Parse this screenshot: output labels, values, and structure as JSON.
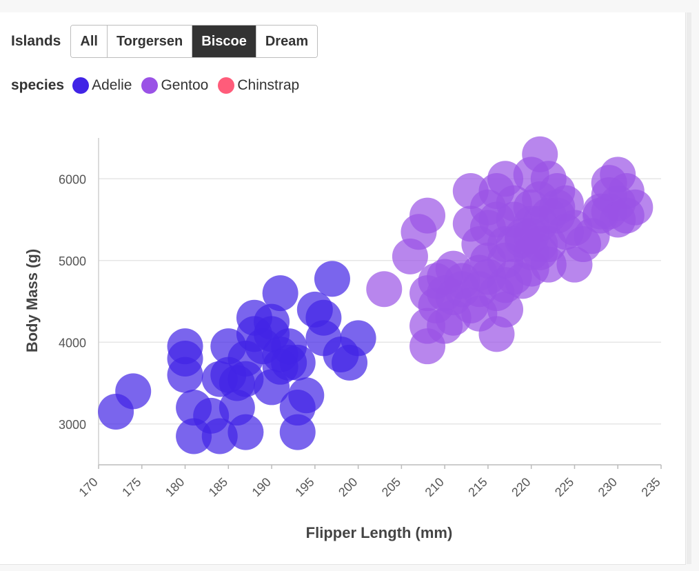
{
  "filters": {
    "label": "Islands",
    "options": [
      "All",
      "Torgersen",
      "Biscoe",
      "Dream"
    ],
    "selected": "Biscoe"
  },
  "legend": {
    "title": "species",
    "items": [
      {
        "label": "Adelie",
        "color": "#4124e6"
      },
      {
        "label": "Gentoo",
        "color": "#9a52e6"
      },
      {
        "label": "Chinstrap",
        "color": "#ff5c7a"
      }
    ]
  },
  "chart_data": {
    "type": "scatter",
    "xlabel": "Flipper Length (mm)",
    "ylabel": "Body Mass (g)",
    "xlim": [
      170,
      235
    ],
    "ylim": [
      2500,
      6500
    ],
    "x_ticks": [
      170,
      175,
      180,
      185,
      190,
      195,
      200,
      205,
      210,
      215,
      220,
      225,
      230,
      235
    ],
    "y_ticks": [
      3000,
      4000,
      5000,
      6000
    ],
    "grid": "horizontal",
    "series": [
      {
        "name": "Adelie",
        "color": "#4124e6",
        "points": [
          [
            172,
            3150
          ],
          [
            174,
            3400
          ],
          [
            180,
            3950
          ],
          [
            180,
            3800
          ],
          [
            180,
            3600
          ],
          [
            181,
            3200
          ],
          [
            181,
            2850
          ],
          [
            183,
            3100
          ],
          [
            184,
            2850
          ],
          [
            184,
            3550
          ],
          [
            185,
            3950
          ],
          [
            185,
            3600
          ],
          [
            186,
            3500
          ],
          [
            186,
            3200
          ],
          [
            187,
            2900
          ],
          [
            187,
            3800
          ],
          [
            187,
            3550
          ],
          [
            188,
            4300
          ],
          [
            188,
            4100
          ],
          [
            189,
            3950
          ],
          [
            190,
            4100
          ],
          [
            190,
            4250
          ],
          [
            190,
            3450
          ],
          [
            191,
            3700
          ],
          [
            191,
            4600
          ],
          [
            191,
            3850
          ],
          [
            192,
            3750
          ],
          [
            192,
            3950
          ],
          [
            193,
            3200
          ],
          [
            193,
            2900
          ],
          [
            193,
            3750
          ],
          [
            194,
            3350
          ],
          [
            195,
            4400
          ],
          [
            196,
            4050
          ],
          [
            196,
            4300
          ],
          [
            197,
            4775
          ],
          [
            198,
            3850
          ],
          [
            199,
            3750
          ],
          [
            200,
            4050
          ]
        ]
      },
      {
        "name": "Gentoo",
        "color": "#9a52e6",
        "points": [
          [
            203,
            4650
          ],
          [
            206,
            5050
          ],
          [
            207,
            5350
          ],
          [
            208,
            5550
          ],
          [
            208,
            4600
          ],
          [
            208,
            4200
          ],
          [
            208,
            3950
          ],
          [
            209,
            4450
          ],
          [
            209,
            4750
          ],
          [
            210,
            4200
          ],
          [
            210,
            4800
          ],
          [
            210,
            4600
          ],
          [
            211,
            4550
          ],
          [
            211,
            4300
          ],
          [
            211,
            4900
          ],
          [
            212,
            4650
          ],
          [
            212,
            4750
          ],
          [
            213,
            5850
          ],
          [
            213,
            4450
          ],
          [
            213,
            5450
          ],
          [
            214,
            4850
          ],
          [
            214,
            4650
          ],
          [
            214,
            5200
          ],
          [
            214,
            4350
          ],
          [
            215,
            5650
          ],
          [
            215,
            5400
          ],
          [
            215,
            4800
          ],
          [
            215,
            5000
          ],
          [
            216,
            4100
          ],
          [
            216,
            5500
          ],
          [
            216,
            4600
          ],
          [
            216,
            5850
          ],
          [
            217,
            5000
          ],
          [
            217,
            4400
          ],
          [
            217,
            4700
          ],
          [
            217,
            5200
          ],
          [
            217,
            6000
          ],
          [
            218,
            5700
          ],
          [
            218,
            5200
          ],
          [
            218,
            4800
          ],
          [
            218,
            5500
          ],
          [
            219,
            4750
          ],
          [
            219,
            5300
          ],
          [
            219,
            5250
          ],
          [
            220,
            5300
          ],
          [
            220,
            5100
          ],
          [
            220,
            5450
          ],
          [
            220,
            5650
          ],
          [
            220,
            4900
          ],
          [
            220,
            6050
          ],
          [
            221,
            5200
          ],
          [
            221,
            5100
          ],
          [
            221,
            6300
          ],
          [
            221,
            5450
          ],
          [
            221,
            5750
          ],
          [
            222,
            5550
          ],
          [
            222,
            5200
          ],
          [
            222,
            6000
          ],
          [
            222,
            4950
          ],
          [
            223,
            5650
          ],
          [
            223,
            5550
          ],
          [
            223,
            5850
          ],
          [
            224,
            5350
          ],
          [
            224,
            5700
          ],
          [
            225,
            4950
          ],
          [
            225,
            5400
          ],
          [
            226,
            5200
          ],
          [
            227,
            5300
          ],
          [
            228,
            5550
          ],
          [
            228,
            5600
          ],
          [
            229,
            5800
          ],
          [
            229,
            5950
          ],
          [
            229,
            5600
          ],
          [
            230,
            6050
          ],
          [
            230,
            5700
          ],
          [
            230,
            5500
          ],
          [
            231,
            5550
          ],
          [
            231,
            5850
          ],
          [
            232,
            5650
          ]
        ]
      }
    ]
  }
}
